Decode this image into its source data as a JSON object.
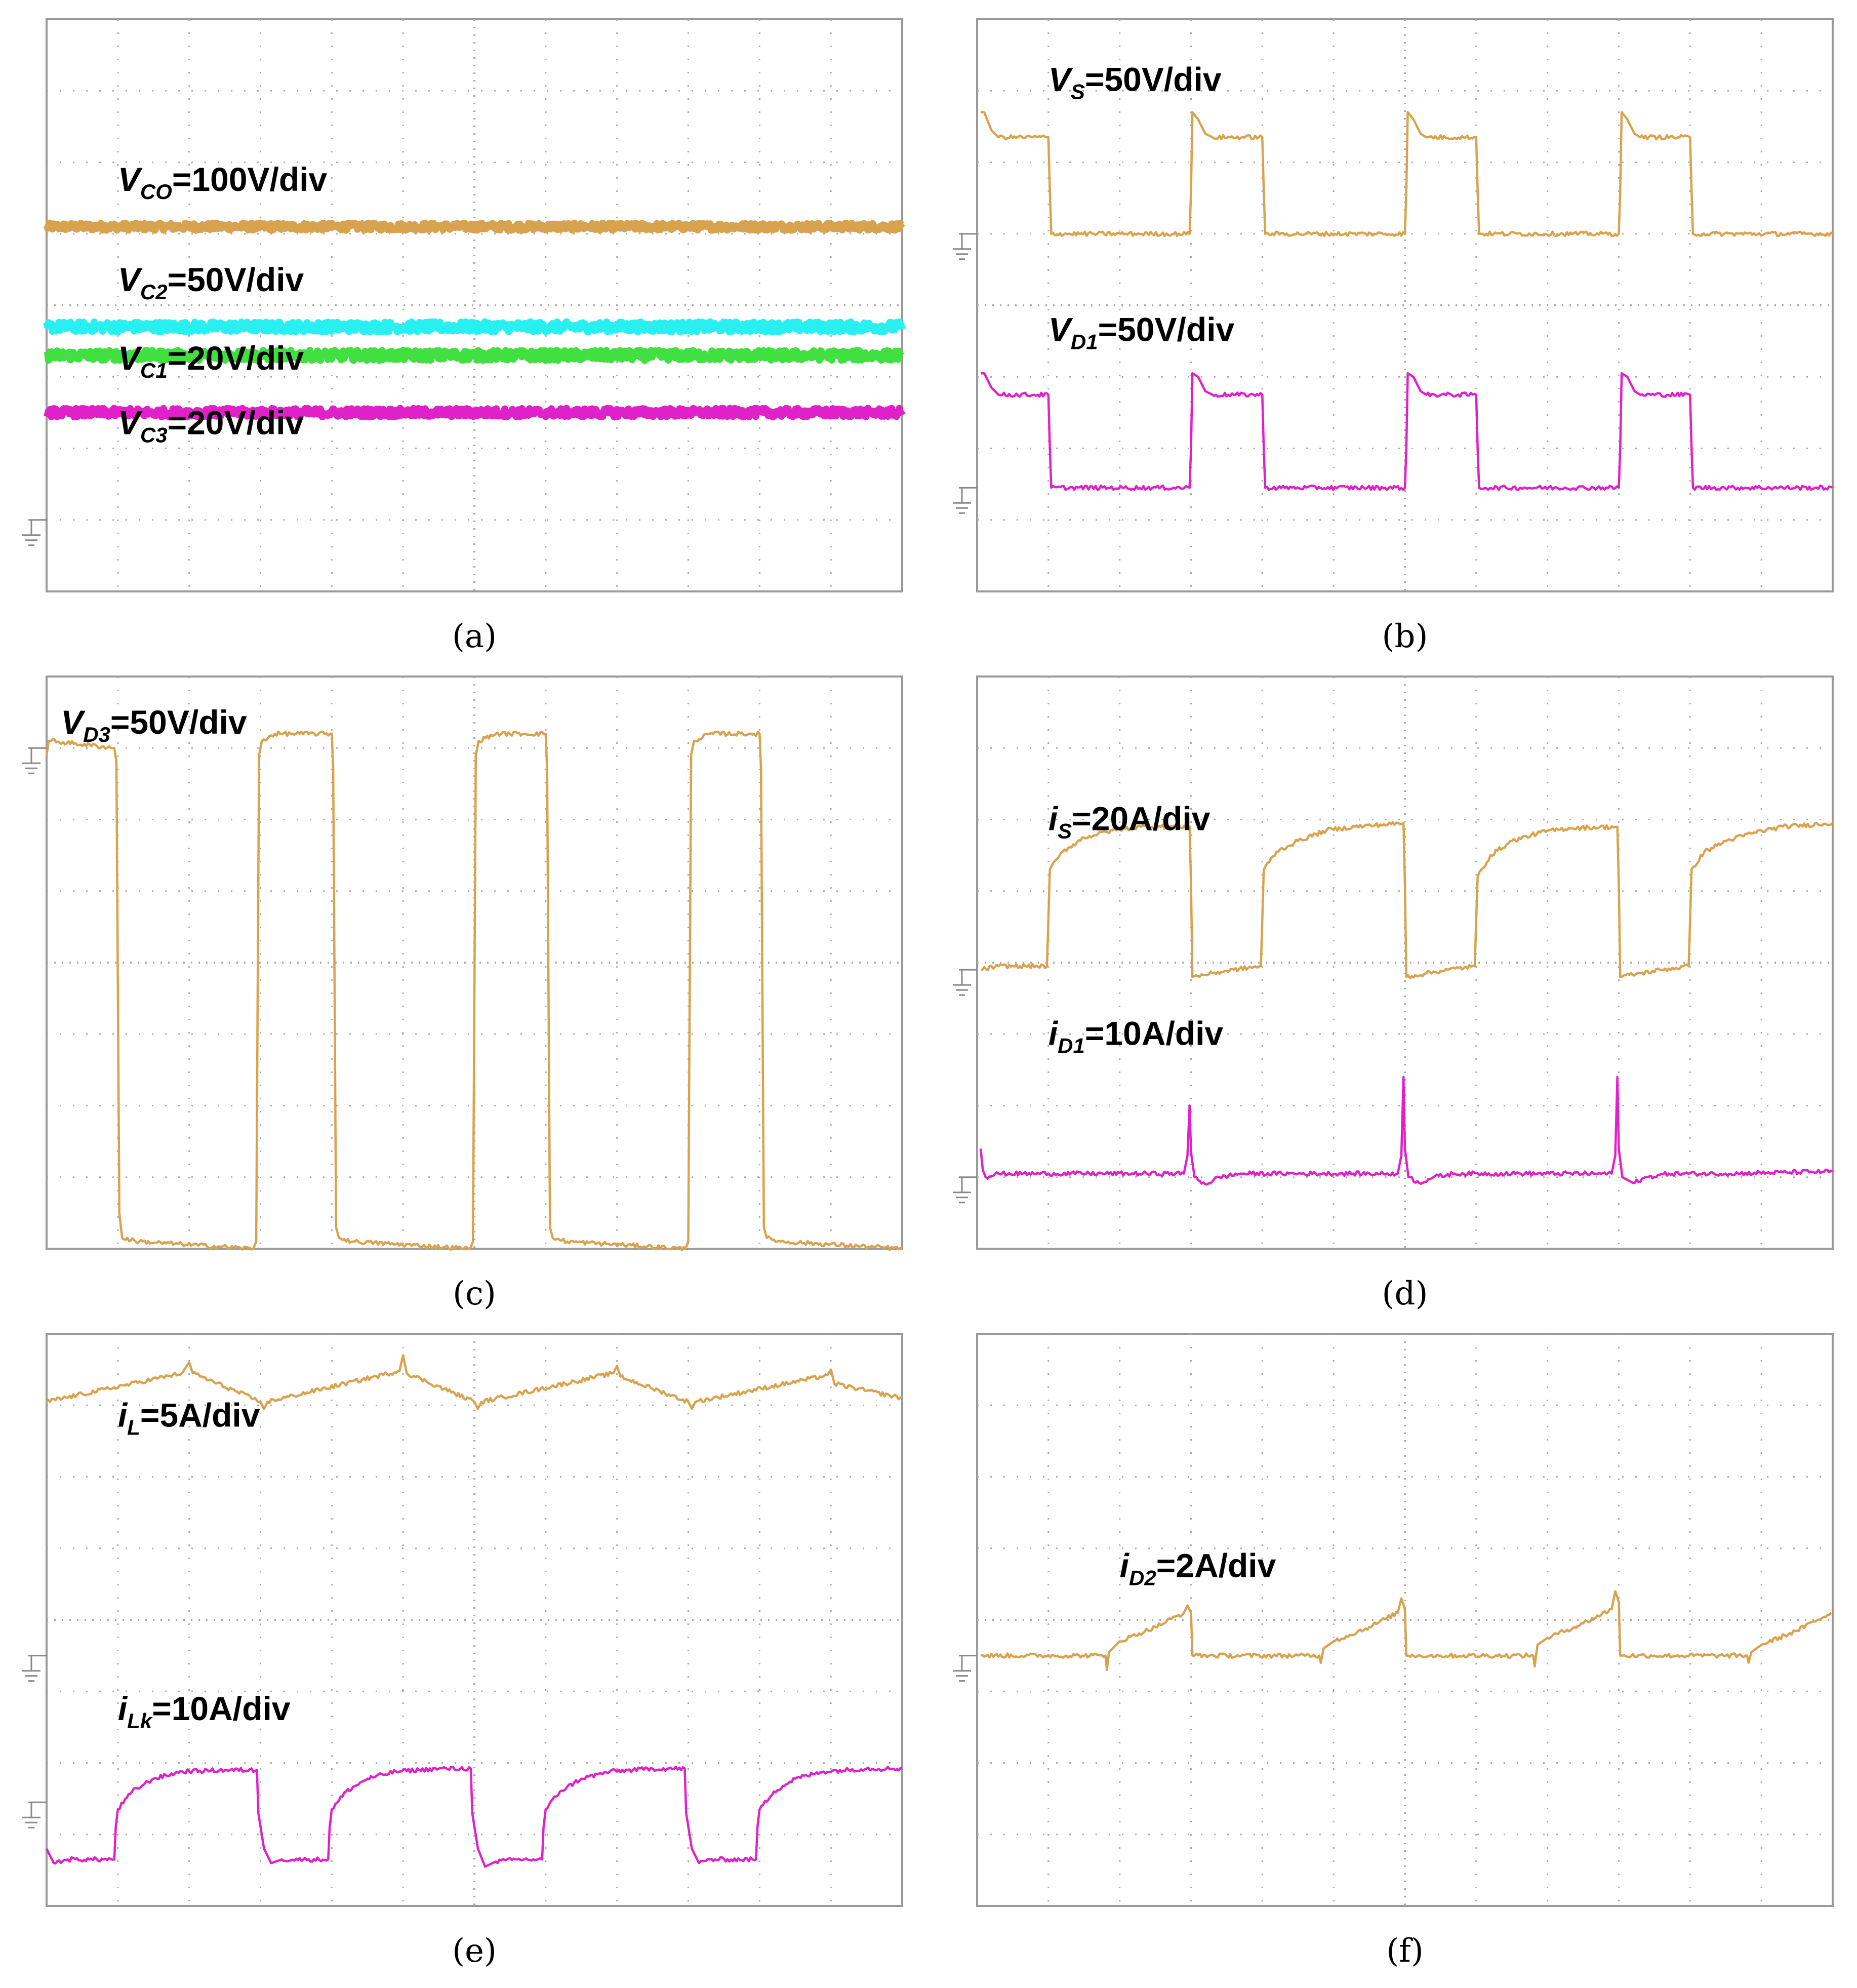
{
  "figure": {
    "colors": {
      "orange": "#d9a24e",
      "cyan": "#29f0f0",
      "green": "#3fe03f",
      "magenta": "#e020c8",
      "grid": "#aaaaaa",
      "frame": "#9a9a9a"
    }
  },
  "chart_data": [
    {
      "type": "line",
      "panel": "a",
      "caption": "(a)",
      "title": "",
      "xlabel": "",
      "ylabel": "",
      "grid": true,
      "divisions_x": 12,
      "divisions_y": 8,
      "ground_marker_div": 1.0,
      "series": [
        {
          "name": "VCO",
          "label_main": "V",
          "label_sub": "CO",
          "label_rest": "=100V/div",
          "color": "orange",
          "x": [
            0,
            12
          ],
          "y": [
            5.1,
            5.1
          ],
          "noise": 0.05,
          "label_at": [
            1.0,
            5.6
          ]
        },
        {
          "name": "VC2",
          "label_main": "V",
          "label_sub": "C2",
          "label_rest": "=50V/div",
          "color": "cyan",
          "x": [
            0,
            12
          ],
          "y": [
            3.7,
            3.7
          ],
          "noise": 0.07,
          "label_at": [
            1.0,
            4.2
          ]
        },
        {
          "name": "VC1",
          "label_main": "V",
          "label_sub": "C1",
          "label_rest": "=20V/div",
          "color": "green",
          "x": [
            0,
            12
          ],
          "y": [
            3.3,
            3.3
          ],
          "noise": 0.07,
          "label_at": [
            1.0,
            3.1
          ]
        },
        {
          "name": "VC3",
          "label_main": "V",
          "label_sub": "C3",
          "label_rest": "=20V/div",
          "color": "magenta",
          "x": [
            0,
            12
          ],
          "y": [
            2.5,
            2.5
          ],
          "noise": 0.06,
          "label_at": [
            1.0,
            2.2
          ]
        }
      ]
    },
    {
      "type": "line",
      "panel": "b",
      "caption": "(b)",
      "title": "",
      "xlabel": "",
      "ylabel": "",
      "grid": true,
      "divisions_x": 12,
      "divisions_y": 8,
      "series": [
        {
          "name": "VS",
          "label_main": "V",
          "label_sub": "S",
          "label_rest": "=50V/div",
          "color": "orange",
          "ground": 5.0,
          "label_at": [
            1.0,
            7.0
          ],
          "x": [
            0.05,
            0.1,
            0.2,
            0.3,
            1.0,
            1.02,
            1.04,
            2.98,
            3.0,
            3.02,
            3.1,
            3.2,
            3.3,
            4.0,
            4.02,
            4.04,
            6.0,
            6.02,
            6.04,
            6.12,
            6.22,
            6.3,
            7.0,
            7.02,
            7.04,
            9.0,
            9.02,
            9.04,
            9.12,
            9.22,
            9.3,
            10.0,
            10.02,
            10.04,
            12.0
          ],
          "y": [
            6.7,
            6.7,
            6.45,
            6.35,
            6.35,
            5.6,
            5.0,
            5.0,
            5.6,
            6.7,
            6.6,
            6.4,
            6.35,
            6.35,
            5.6,
            5.0,
            5.0,
            5.6,
            6.7,
            6.6,
            6.4,
            6.35,
            6.35,
            5.6,
            5.0,
            5.0,
            5.6,
            6.7,
            6.6,
            6.4,
            6.35,
            6.35,
            5.6,
            5.0,
            5.0
          ]
        },
        {
          "name": "VD1",
          "label_main": "V",
          "label_sub": "D1",
          "label_rest": "=50V/div",
          "color": "magenta",
          "ground": 1.45,
          "label_at": [
            1.0,
            3.5
          ],
          "x": [
            0.05,
            0.1,
            0.2,
            0.3,
            1.0,
            1.02,
            1.04,
            2.98,
            3.0,
            3.02,
            3.1,
            3.2,
            3.3,
            4.0,
            4.02,
            4.04,
            6.0,
            6.02,
            6.04,
            6.12,
            6.22,
            6.3,
            7.0,
            7.02,
            7.04,
            9.0,
            9.02,
            9.04,
            9.12,
            9.22,
            9.3,
            10.0,
            10.02,
            10.04,
            12.0
          ],
          "y": [
            3.05,
            3.05,
            2.85,
            2.75,
            2.75,
            2.0,
            1.45,
            1.45,
            2.0,
            3.05,
            3.0,
            2.8,
            2.75,
            2.75,
            2.0,
            1.45,
            1.45,
            2.0,
            3.05,
            3.0,
            2.8,
            2.75,
            2.75,
            2.0,
            1.45,
            1.45,
            2.0,
            3.05,
            3.0,
            2.8,
            2.75,
            2.75,
            2.0,
            1.45,
            1.45
          ]
        }
      ]
    },
    {
      "type": "line",
      "panel": "c",
      "caption": "(c)",
      "title": "",
      "xlabel": "",
      "ylabel": "",
      "grid": true,
      "divisions_x": 12,
      "divisions_y": 8,
      "series": [
        {
          "name": "VD3",
          "label_main": "V",
          "label_sub": "D3",
          "label_rest": "=50V/div",
          "color": "orange",
          "ground": 7.0,
          "label_at": [
            0.2,
            7.2
          ],
          "x": [
            0.0,
            0.03,
            0.06,
            0.95,
            0.98,
            1.02,
            1.06,
            1.3,
            2.9,
            2.94,
            2.98,
            3.02,
            3.2,
            4.0,
            4.02,
            4.06,
            4.1,
            4.3,
            5.94,
            5.98,
            6.02,
            6.06,
            6.3,
            7.0,
            7.02,
            7.06,
            7.1,
            7.3,
            8.96,
            9.0,
            9.04,
            9.08,
            9.3,
            10.0,
            10.02,
            10.06,
            10.1,
            10.3,
            12.0
          ],
          "y": [
            6.9,
            7.1,
            7.1,
            7.0,
            6.8,
            0.5,
            0.15,
            0.1,
            0.0,
            0.1,
            6.9,
            7.1,
            7.2,
            7.2,
            6.7,
            0.3,
            0.15,
            0.1,
            0.0,
            0.1,
            6.9,
            7.1,
            7.2,
            7.2,
            6.7,
            0.3,
            0.15,
            0.1,
            0.0,
            0.1,
            6.9,
            7.1,
            7.2,
            7.2,
            6.7,
            0.3,
            0.15,
            0.1,
            0.0
          ]
        }
      ]
    },
    {
      "type": "line",
      "panel": "d",
      "caption": "(d)",
      "title": "",
      "xlabel": "",
      "ylabel": "",
      "grid": true,
      "divisions_x": 12,
      "divisions_y": 8,
      "series": [
        {
          "name": "iS",
          "label_main": "i",
          "label_sub": "S",
          "label_rest": "=20A/div",
          "color": "orange",
          "ground": 3.9,
          "label_at": [
            1.0,
            5.85
          ],
          "x": [
            0.05,
            0.3,
            0.6,
            0.98,
            1.0,
            1.02,
            1.2,
            1.5,
            1.9,
            2.3,
            2.98,
            3.0,
            3.02,
            3.3,
            3.6,
            3.98,
            4.0,
            4.02,
            4.2,
            4.5,
            4.9,
            5.3,
            5.98,
            6.0,
            6.02,
            6.3,
            6.6,
            6.98,
            7.0,
            7.02,
            7.2,
            7.5,
            7.9,
            8.3,
            8.98,
            9.0,
            9.02,
            9.3,
            9.6,
            9.98,
            10.0,
            10.02,
            10.2,
            10.5,
            10.9,
            11.3,
            12.0
          ],
          "y": [
            3.9,
            3.95,
            3.95,
            3.95,
            4.6,
            5.3,
            5.55,
            5.75,
            5.85,
            5.9,
            5.9,
            5.1,
            3.8,
            3.85,
            3.9,
            3.95,
            4.6,
            5.3,
            5.55,
            5.7,
            5.85,
            5.9,
            5.95,
            5.1,
            3.8,
            3.85,
            3.9,
            3.95,
            4.6,
            5.2,
            5.5,
            5.7,
            5.82,
            5.88,
            5.9,
            5.1,
            3.8,
            3.85,
            3.9,
            3.95,
            4.6,
            5.3,
            5.55,
            5.7,
            5.82,
            5.9,
            5.95
          ]
        },
        {
          "name": "iD1",
          "label_main": "i",
          "label_sub": "D1",
          "label_rest": "=10A/div",
          "color": "magenta",
          "ground": 1.0,
          "label_at": [
            1.0,
            2.85
          ],
          "x": [
            0.05,
            0.08,
            0.12,
            0.3,
            1.0,
            2.9,
            2.95,
            2.98,
            3.0,
            3.05,
            3.2,
            3.4,
            3.7,
            4.5,
            5.9,
            5.95,
            5.98,
            6.0,
            6.05,
            6.2,
            6.4,
            6.7,
            7.5,
            8.9,
            8.95,
            8.98,
            9.0,
            9.05,
            9.2,
            9.4,
            9.7,
            10.5,
            12.0
          ],
          "y": [
            1.4,
            1.1,
            1.0,
            1.05,
            1.05,
            1.05,
            1.3,
            2.0,
            1.35,
            1.0,
            0.9,
            1.0,
            1.05,
            1.05,
            1.05,
            1.3,
            2.4,
            1.4,
            1.0,
            0.92,
            1.0,
            1.05,
            1.05,
            1.05,
            1.3,
            2.4,
            1.4,
            1.0,
            0.92,
            1.0,
            1.05,
            1.05,
            1.08
          ]
        }
      ]
    },
    {
      "type": "line",
      "panel": "e",
      "caption": "(e)",
      "title": "",
      "xlabel": "",
      "ylabel": "",
      "grid": true,
      "divisions_x": 12,
      "divisions_y": 8,
      "series": [
        {
          "name": "iL",
          "label_main": "i",
          "label_sub": "L",
          "label_rest": "=5A/div",
          "color": "orange",
          "ground": 3.5,
          "label_at": [
            1.0,
            6.7
          ],
          "x": [
            0.0,
            1.9,
            2.0,
            2.05,
            3.0,
            3.05,
            3.1,
            4.95,
            5.0,
            5.05,
            6.0,
            6.05,
            6.1,
            7.95,
            8.0,
            8.05,
            9.0,
            9.05,
            9.1,
            10.95,
            11.0,
            11.05,
            12.0
          ],
          "y": [
            7.05,
            7.45,
            7.6,
            7.45,
            7.05,
            6.95,
            7.05,
            7.48,
            7.7,
            7.45,
            7.05,
            6.95,
            7.05,
            7.45,
            7.55,
            7.4,
            7.05,
            6.95,
            7.05,
            7.42,
            7.5,
            7.3,
            7.1
          ]
        },
        {
          "name": "iLk",
          "label_main": "i",
          "label_sub": "Lk",
          "label_rest": "=10A/div",
          "color": "magenta",
          "ground": 1.45,
          "label_at": [
            1.0,
            2.6
          ],
          "x": [
            0.0,
            0.1,
            0.3,
            0.6,
            0.95,
            0.97,
            1.0,
            1.2,
            1.5,
            1.9,
            2.5,
            2.95,
            2.97,
            3.05,
            3.15,
            3.3,
            3.6,
            3.95,
            3.97,
            4.0,
            4.2,
            4.5,
            4.9,
            5.5,
            5.95,
            5.97,
            6.05,
            6.15,
            6.3,
            6.6,
            6.95,
            6.97,
            7.0,
            7.2,
            7.5,
            7.9,
            8.5,
            8.95,
            8.97,
            9.05,
            9.15,
            9.3,
            9.6,
            9.95,
            9.97,
            10.0,
            10.2,
            10.5,
            10.9,
            11.5,
            12.0
          ],
          "y": [
            0.8,
            0.6,
            0.65,
            0.65,
            0.65,
            1.1,
            1.35,
            1.6,
            1.78,
            1.88,
            1.9,
            1.9,
            1.3,
            0.8,
            0.6,
            0.65,
            0.65,
            0.65,
            1.1,
            1.35,
            1.6,
            1.78,
            1.88,
            1.92,
            1.92,
            1.3,
            0.8,
            0.55,
            0.62,
            0.65,
            0.65,
            1.1,
            1.35,
            1.6,
            1.78,
            1.88,
            1.92,
            1.92,
            1.3,
            0.8,
            0.6,
            0.65,
            0.65,
            0.65,
            1.1,
            1.35,
            1.6,
            1.78,
            1.88,
            1.92,
            1.92
          ]
        }
      ]
    },
    {
      "type": "line",
      "panel": "f",
      "caption": "(f)",
      "title": "",
      "xlabel": "",
      "ylabel": "",
      "grid": true,
      "divisions_x": 12,
      "divisions_y": 8,
      "series": [
        {
          "name": "iD2",
          "label_main": "i",
          "label_sub": "D2",
          "label_rest": "=2A/div",
          "color": "orange",
          "ground": 3.5,
          "label_at": [
            2.0,
            4.6
          ],
          "x": [
            0.05,
            1.8,
            1.82,
            1.85,
            1.9,
            2.0,
            2.5,
            2.9,
            2.95,
            3.0,
            3.02,
            3.05,
            3.5,
            4.5,
            4.8,
            4.82,
            4.86,
            5.0,
            5.5,
            5.9,
            5.95,
            6.0,
            6.02,
            6.05,
            6.5,
            7.5,
            7.8,
            7.82,
            7.86,
            8.0,
            8.5,
            8.9,
            8.95,
            9.0,
            9.02,
            9.05,
            9.5,
            10.5,
            10.8,
            10.82,
            10.86,
            11.0,
            11.5,
            11.98
          ],
          "y": [
            3.5,
            3.5,
            3.3,
            3.55,
            3.6,
            3.7,
            3.9,
            4.1,
            4.2,
            4.1,
            3.5,
            3.5,
            3.5,
            3.5,
            3.5,
            3.4,
            3.6,
            3.7,
            3.9,
            4.1,
            4.3,
            4.15,
            3.5,
            3.5,
            3.5,
            3.5,
            3.5,
            3.35,
            3.65,
            3.75,
            3.95,
            4.15,
            4.4,
            4.25,
            3.5,
            3.5,
            3.5,
            3.5,
            3.5,
            3.4,
            3.55,
            3.65,
            3.85,
            4.1
          ]
        }
      ]
    }
  ]
}
